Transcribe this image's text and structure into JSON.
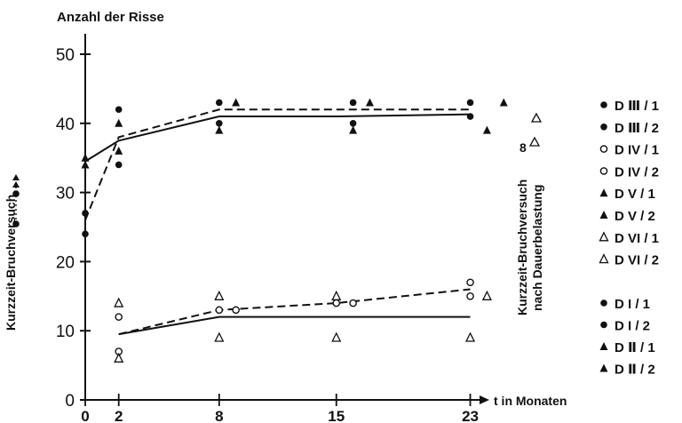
{
  "chart_data": {
    "type": "scatter",
    "ylabel": "Anzahl der Risse",
    "xlabel": "t in Monaten",
    "x_ticks": [
      0,
      2,
      8,
      15,
      23
    ],
    "y_ticks": [
      0,
      10,
      20,
      30,
      40,
      50
    ],
    "xlim": [
      0,
      26
    ],
    "ylim": [
      0,
      53
    ],
    "left_caption": "Kurzzeit-Bruchversuch",
    "right_caption_line1": "Kurzzeit-Bruchversuch",
    "right_caption_line2": "nach Dauerbelastung",
    "right_annotation": "8",
    "series": [
      {
        "name": "D Ⅲ / 1",
        "marker": "filled-circle",
        "points": [
          [
            0,
            24
          ],
          [
            2,
            42
          ],
          [
            8,
            43
          ],
          [
            16,
            40
          ],
          [
            23,
            43
          ]
        ]
      },
      {
        "name": "D Ⅲ / 2",
        "marker": "filled-circle",
        "points": [
          [
            0,
            27
          ],
          [
            2,
            34
          ],
          [
            8,
            40
          ],
          [
            16,
            43
          ],
          [
            23,
            41
          ]
        ]
      },
      {
        "name": "D IV / 1",
        "marker": "open-circle",
        "points": [
          [
            2,
            7
          ],
          [
            8,
            13
          ],
          [
            15,
            14
          ],
          [
            23,
            15
          ]
        ]
      },
      {
        "name": "D IV / 2",
        "marker": "open-circle",
        "points": [
          [
            2,
            12
          ],
          [
            9,
            13
          ],
          [
            16,
            14
          ],
          [
            23,
            17
          ]
        ]
      },
      {
        "name": "D V / 1",
        "marker": "filled-triangle",
        "points": [
          [
            0,
            35
          ],
          [
            2,
            40
          ],
          [
            8,
            39
          ],
          [
            17,
            43
          ],
          [
            24,
            39
          ]
        ]
      },
      {
        "name": "D V / 2",
        "marker": "filled-triangle",
        "points": [
          [
            0,
            34
          ],
          [
            2,
            36
          ],
          [
            9,
            43
          ],
          [
            16,
            39
          ],
          [
            25,
            43
          ]
        ]
      },
      {
        "name": "D VI / 1",
        "marker": "open-triangle",
        "points": [
          [
            2,
            6
          ],
          [
            8,
            9
          ],
          [
            15,
            9
          ],
          [
            23,
            9
          ]
        ]
      },
      {
        "name": "D VI / 2",
        "marker": "open-triangle",
        "points": [
          [
            2,
            14
          ],
          [
            8,
            15
          ],
          [
            15,
            15
          ],
          [
            24,
            15
          ]
        ]
      }
    ],
    "trend_lines": [
      {
        "style": "solid",
        "points": [
          [
            0,
            34.5
          ],
          [
            2,
            37.5
          ],
          [
            8,
            41
          ],
          [
            15,
            41
          ],
          [
            23,
            41.3
          ]
        ]
      },
      {
        "style": "dashed",
        "points": [
          [
            0,
            26
          ],
          [
            2,
            38
          ],
          [
            8,
            42
          ],
          [
            15,
            42
          ],
          [
            23,
            42
          ]
        ]
      },
      {
        "style": "solid",
        "points": [
          [
            2,
            9.5
          ],
          [
            8,
            12
          ],
          [
            15,
            12
          ],
          [
            23,
            12
          ]
        ]
      },
      {
        "style": "dashed",
        "points": [
          [
            2,
            9.5
          ],
          [
            8,
            13
          ],
          [
            15,
            14
          ],
          [
            23,
            16
          ]
        ]
      }
    ],
    "legend_group1": [
      {
        "marker": "filled-circle",
        "label": "D Ⅲ / 1"
      },
      {
        "marker": "filled-circle",
        "label": "D Ⅲ / 2"
      },
      {
        "marker": "open-circle",
        "label": "D IV / 1"
      },
      {
        "marker": "open-circle",
        "label": "D IV / 2"
      },
      {
        "marker": "filled-triangle",
        "label": "D V / 1"
      },
      {
        "marker": "filled-triangle",
        "label": "D V / 2"
      },
      {
        "marker": "open-triangle",
        "label": "D VI / 1"
      },
      {
        "marker": "open-triangle",
        "label": "D VI / 2"
      }
    ],
    "legend_group2": [
      {
        "marker": "filled-circle",
        "label": "D I / 1"
      },
      {
        "marker": "filled-circle",
        "label": "D I / 2"
      },
      {
        "marker": "filled-triangle",
        "label": "D Ⅱ / 1"
      },
      {
        "marker": "filled-triangle",
        "label": "D Ⅱ / 2"
      }
    ],
    "grid": false,
    "legend_position": "right"
  }
}
